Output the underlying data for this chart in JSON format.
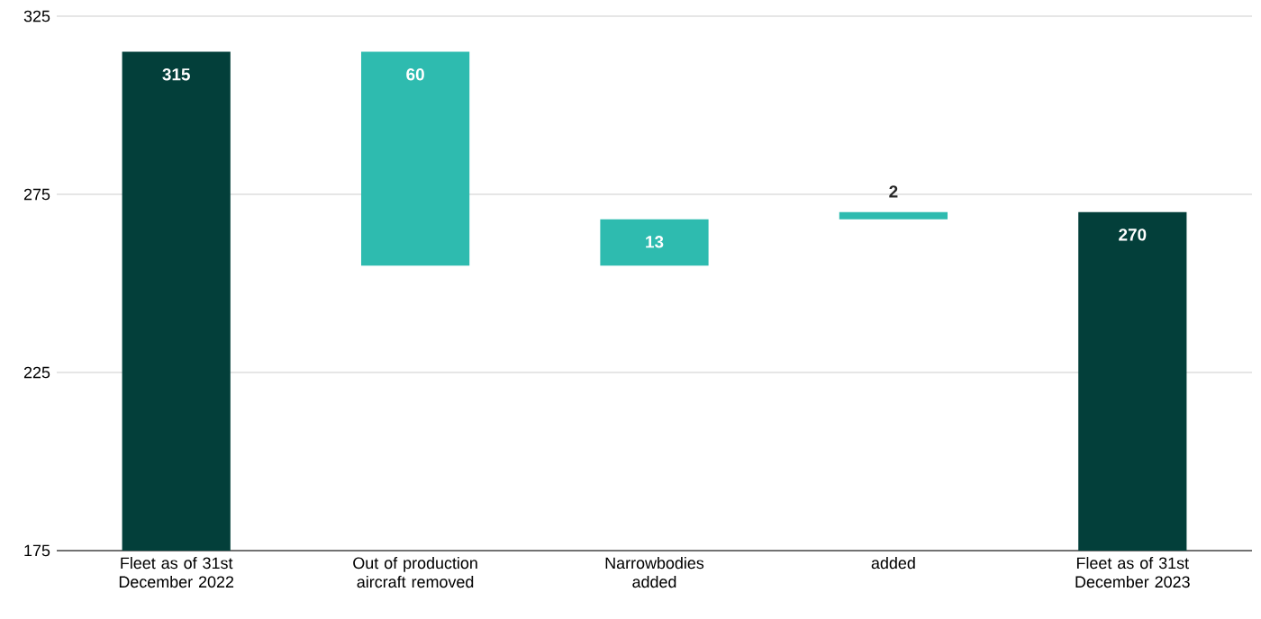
{
  "chart_data": {
    "type": "bar",
    "categories": [
      "Fleet as of 31st December 2022",
      "Out of production aircraft removed",
      "Narrowbodies added",
      "added",
      "Fleet as of 31st December 2023"
    ],
    "values": [
      315,
      -60,
      13,
      2,
      270
    ],
    "base": [
      null,
      315,
      255,
      268,
      null
    ],
    "colors": [
      "#033f3a",
      "#2ebbaf",
      "#2ebbaf",
      "#2ebbaf",
      "#033f3a"
    ],
    "value_labels": [
      "315",
      "60",
      "13",
      "2",
      "270"
    ],
    "ylim": [
      175,
      325
    ],
    "yticks": [
      175,
      225,
      275,
      325
    ],
    "grid": "y"
  }
}
